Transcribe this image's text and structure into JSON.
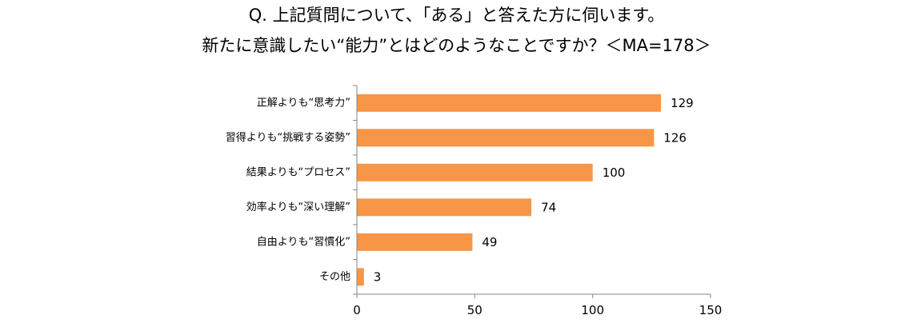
{
  "title_lines": [
    "Q. 上記質問について、「ある」と答えた方に伺います。",
    "新たに意識したい“能力”とはどのようなことですか？＜MA=178＞"
  ],
  "chart_data": {
    "type": "bar",
    "orientation": "horizontal",
    "title": "Q. 上記質問について、「ある」と答えた方に伺います。新たに意識したい“能力”とはどのようなことですか？＜MA=178＞",
    "categories": [
      "正解よりも“思考力”",
      "習得よりも“挑戦する姿勢”",
      "結果よりも“プロセス”",
      "効率よりも“深い理解”",
      "自由よりも“習慣化”",
      "その他"
    ],
    "values": [
      129,
      126,
      100,
      74,
      49,
      3
    ],
    "xlim": [
      0,
      150
    ],
    "xticks": [
      0,
      50,
      100,
      150
    ],
    "bar_color": "#F79646",
    "grid": false,
    "legend": "none"
  }
}
